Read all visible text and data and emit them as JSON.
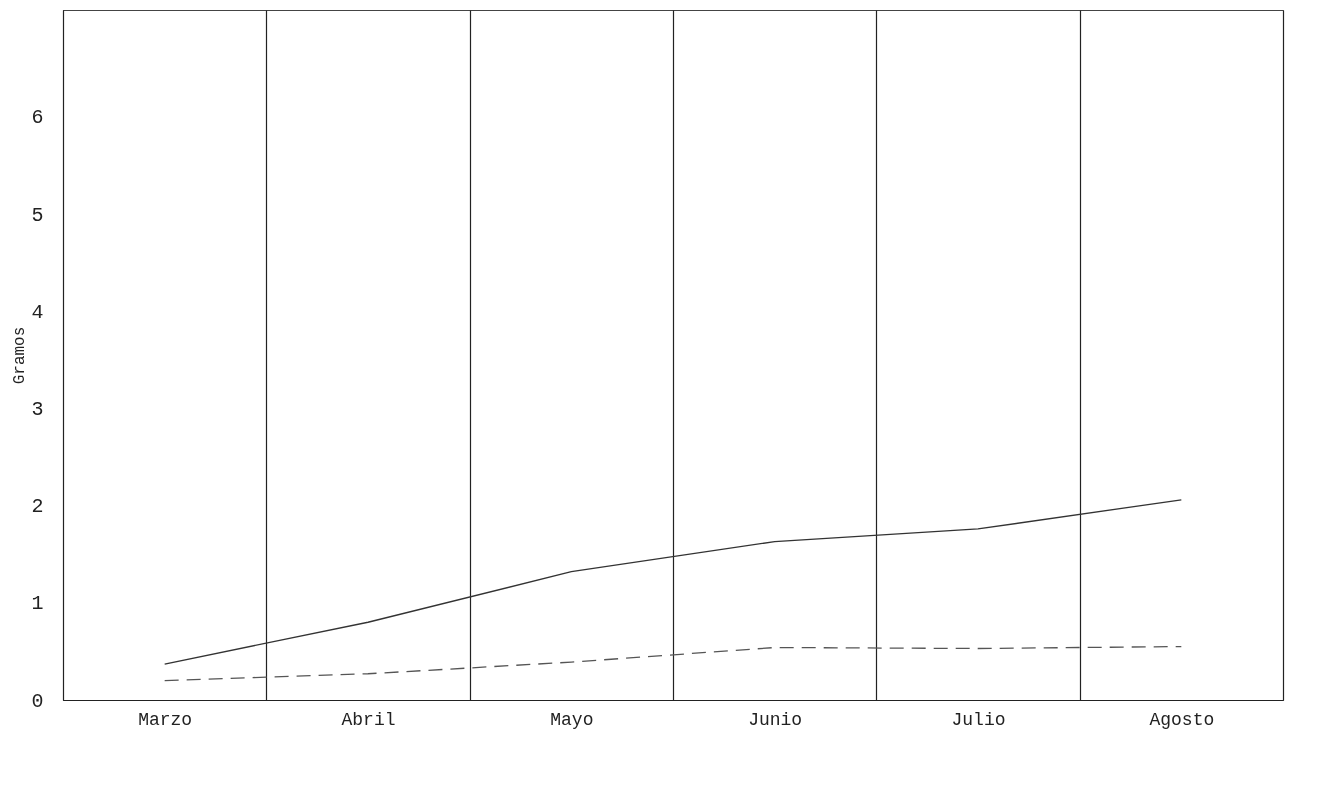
{
  "chart_data": {
    "type": "line",
    "ylabel": "Gramos",
    "categories": [
      "Marzo",
      "Abril",
      "Mayo",
      "Junio",
      "Julio",
      "Agosto"
    ],
    "series": [
      {
        "color": "#333333",
        "line_style": "solid",
        "values": [
          0.37,
          0.8,
          1.32,
          1.63,
          1.76,
          2.06
        ]
      },
      {
        "color": "#555555",
        "line_style": "dashed",
        "values": [
          0.2,
          0.27,
          0.39,
          0.54,
          0.53,
          0.55
        ]
      }
    ],
    "ylim": [
      0,
      7.1
    ],
    "yticks": [
      0,
      1,
      2,
      3,
      4,
      5,
      6
    ],
    "grid": "x",
    "marker": "none"
  }
}
